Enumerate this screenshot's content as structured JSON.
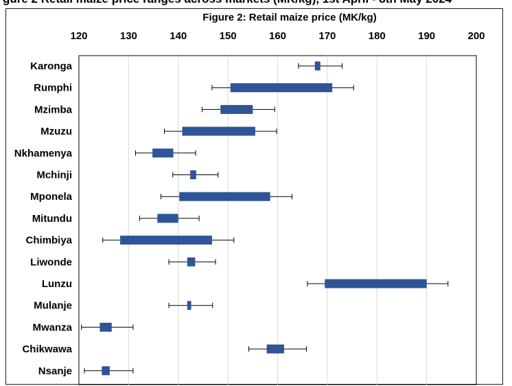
{
  "header": {
    "clipped_text": "gure 2 Retail maize price ranges across markets (MK/kg), 1st April - 8th May 2024"
  },
  "chart_data": {
    "type": "floating-bar-with-whiskers",
    "title": "Figure 2: Retail maize price (MK/kg)",
    "xlim": [
      120,
      200
    ],
    "x_ticks": [
      120,
      130,
      140,
      150,
      160,
      170,
      180,
      190,
      200
    ],
    "grid": "vertical",
    "colors": {
      "bar": "#2e5597",
      "whisker": "#000000",
      "grid": "#d9d9d9"
    },
    "categories": [
      "Karonga",
      "Rumphi",
      "Mzimba",
      "Mzuzu",
      "Nkhamenya",
      "Mchinji",
      "Mponela",
      "Mitundu",
      "Chimbiya",
      "Liwonde",
      "Lunzu",
      "Mulanje",
      "Mwanza",
      "Chikwawa",
      "Nsanje"
    ],
    "series": [
      {
        "whisker_low": [
          164.2,
          146.8,
          144.8,
          137.2,
          131.4,
          138.9,
          136.5,
          132.2,
          124.8,
          138.1,
          166.0,
          138.1,
          120.5,
          154.2,
          121.1
        ],
        "box_low": [
          167.5,
          150.5,
          148.5,
          140.8,
          134.8,
          142.4,
          140.2,
          135.8,
          128.3,
          141.8,
          169.5,
          141.8,
          124.2,
          157.8,
          124.6
        ],
        "box_high": [
          168.6,
          171.0,
          155.0,
          155.5,
          139.0,
          143.6,
          158.5,
          140.0,
          146.8,
          143.4,
          190.0,
          142.6,
          126.6,
          161.3,
          126.2
        ],
        "whisker_high": [
          173.0,
          175.3,
          159.4,
          159.8,
          143.5,
          148.0,
          162.9,
          144.2,
          151.2,
          147.5,
          194.3,
          146.9,
          130.9,
          165.8,
          130.9
        ]
      }
    ]
  }
}
